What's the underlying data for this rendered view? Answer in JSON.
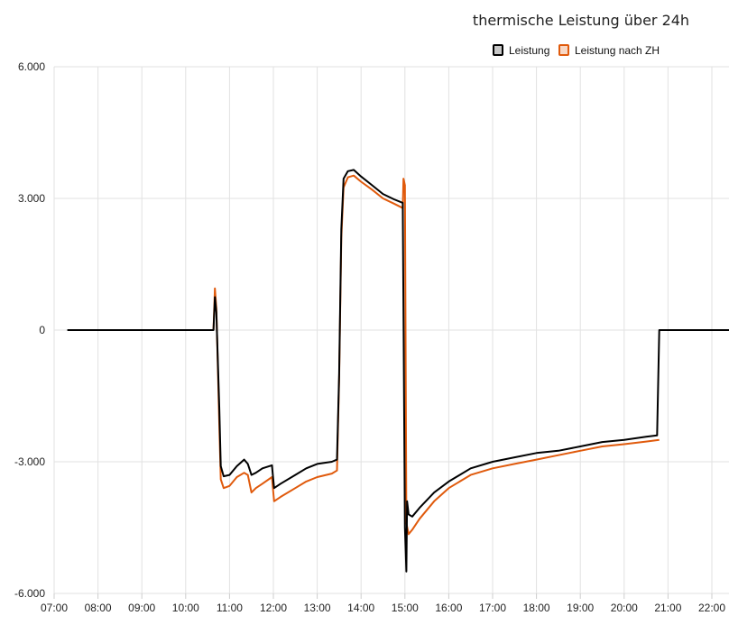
{
  "chart_data": {
    "type": "line",
    "title": "thermische Leistung über 24h",
    "xlabel": "",
    "ylabel": "",
    "ylim": [
      -6000,
      6000
    ],
    "xlim": [
      "07:00",
      "22:40"
    ],
    "y_ticks": [
      "6.000",
      "3.000",
      "0",
      "-3.000",
      "-6.000"
    ],
    "y_tick_values": [
      6000,
      3000,
      0,
      -3000,
      -6000
    ],
    "x_ticks": [
      "07:00",
      "08:00",
      "09:00",
      "10:00",
      "11:00",
      "12:00",
      "13:00",
      "14:00",
      "15:00",
      "16:00",
      "17:00",
      "18:00",
      "19:00",
      "20:00",
      "21:00",
      "22:00"
    ],
    "grid": true,
    "legend_position": "top-right",
    "series": [
      {
        "name": "Leistung",
        "color": "#000000",
        "points": [
          [
            "07:18",
            0
          ],
          [
            "10:38",
            0
          ],
          [
            "10:40",
            750
          ],
          [
            "10:42",
            400
          ],
          [
            "10:46",
            -1800
          ],
          [
            "10:48",
            -3100
          ],
          [
            "10:52",
            -3330
          ],
          [
            "11:00",
            -3300
          ],
          [
            "11:10",
            -3100
          ],
          [
            "11:20",
            -2950
          ],
          [
            "11:25",
            -3050
          ],
          [
            "11:30",
            -3300
          ],
          [
            "11:36",
            -3250
          ],
          [
            "11:45",
            -3150
          ],
          [
            "11:58",
            -3080
          ],
          [
            "12:01",
            -3600
          ],
          [
            "12:10",
            -3500
          ],
          [
            "12:30",
            -3300
          ],
          [
            "12:45",
            -3150
          ],
          [
            "13:00",
            -3050
          ],
          [
            "13:20",
            -3000
          ],
          [
            "13:27",
            -2950
          ],
          [
            "13:30",
            -1000
          ],
          [
            "13:33",
            2300
          ],
          [
            "13:36",
            3450
          ],
          [
            "13:42",
            3620
          ],
          [
            "13:50",
            3650
          ],
          [
            "14:00",
            3500
          ],
          [
            "14:15",
            3300
          ],
          [
            "14:30",
            3100
          ],
          [
            "14:45",
            2980
          ],
          [
            "14:57",
            2900
          ],
          [
            "15:00",
            -4500
          ],
          [
            "15:02",
            -5500
          ],
          [
            "15:03",
            -3900
          ],
          [
            "15:05",
            -4200
          ],
          [
            "15:10",
            -4250
          ],
          [
            "15:20",
            -4050
          ],
          [
            "15:40",
            -3700
          ],
          [
            "16:00",
            -3450
          ],
          [
            "16:30",
            -3150
          ],
          [
            "17:00",
            -3000
          ],
          [
            "17:30",
            -2900
          ],
          [
            "18:00",
            -2800
          ],
          [
            "18:30",
            -2750
          ],
          [
            "19:00",
            -2650
          ],
          [
            "19:30",
            -2550
          ],
          [
            "20:00",
            -2500
          ],
          [
            "20:30",
            -2430
          ],
          [
            "20:45",
            -2400
          ],
          [
            "20:48",
            0
          ],
          [
            "22:40",
            0
          ]
        ]
      },
      {
        "name": "Leistung nach ZH",
        "color": "#e05a0c",
        "points": [
          [
            "10:38",
            0
          ],
          [
            "10:40",
            950
          ],
          [
            "10:42",
            500
          ],
          [
            "10:46",
            -2200
          ],
          [
            "10:48",
            -3400
          ],
          [
            "10:52",
            -3600
          ],
          [
            "11:00",
            -3550
          ],
          [
            "11:10",
            -3350
          ],
          [
            "11:20",
            -3250
          ],
          [
            "11:25",
            -3300
          ],
          [
            "11:30",
            -3700
          ],
          [
            "11:36",
            -3600
          ],
          [
            "11:45",
            -3500
          ],
          [
            "11:58",
            -3350
          ],
          [
            "12:01",
            -3900
          ],
          [
            "12:10",
            -3800
          ],
          [
            "12:30",
            -3600
          ],
          [
            "12:45",
            -3450
          ],
          [
            "13:00",
            -3350
          ],
          [
            "13:20",
            -3270
          ],
          [
            "13:27",
            -3200
          ],
          [
            "13:30",
            -1100
          ],
          [
            "13:33",
            2100
          ],
          [
            "13:36",
            3250
          ],
          [
            "13:42",
            3480
          ],
          [
            "13:50",
            3520
          ],
          [
            "14:00",
            3380
          ],
          [
            "14:15",
            3200
          ],
          [
            "14:30",
            3000
          ],
          [
            "14:45",
            2880
          ],
          [
            "14:57",
            2780
          ],
          [
            "14:58",
            3450
          ],
          [
            "15:00",
            3300
          ],
          [
            "15:02",
            -4400
          ],
          [
            "15:05",
            -4650
          ],
          [
            "15:10",
            -4550
          ],
          [
            "15:20",
            -4300
          ],
          [
            "15:40",
            -3900
          ],
          [
            "16:00",
            -3600
          ],
          [
            "16:30",
            -3300
          ],
          [
            "17:00",
            -3150
          ],
          [
            "17:30",
            -3050
          ],
          [
            "18:00",
            -2950
          ],
          [
            "18:30",
            -2850
          ],
          [
            "19:00",
            -2750
          ],
          [
            "19:30",
            -2650
          ],
          [
            "20:00",
            -2600
          ],
          [
            "20:30",
            -2540
          ],
          [
            "20:48",
            -2500
          ]
        ]
      }
    ]
  }
}
